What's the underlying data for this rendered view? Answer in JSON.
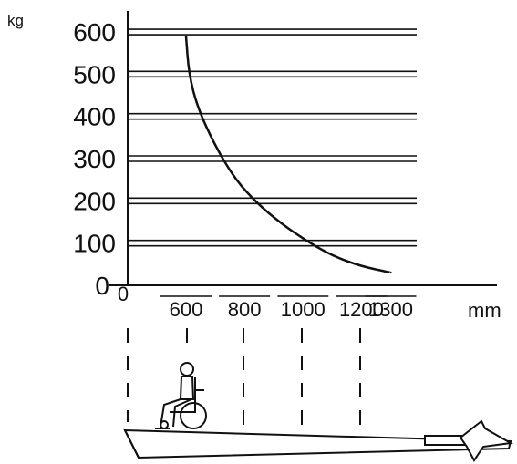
{
  "chart_data": {
    "type": "line",
    "title": "",
    "ylabel": "kg",
    "xlabel": "mm",
    "y_ticks": [
      "0",
      "100",
      "200",
      "300",
      "400",
      "500",
      "600"
    ],
    "x_ticks": [
      "0",
      "600",
      "800",
      "1000",
      "1200",
      "1300"
    ],
    "ylim": [
      0,
      600
    ],
    "grid": "horizontal double lines",
    "series": [
      {
        "points": [
          {
            "x": 600,
            "y": 590
          },
          {
            "x": 610,
            "y": 500
          },
          {
            "x": 640,
            "y": 420
          },
          {
            "x": 700,
            "y": 330
          },
          {
            "x": 760,
            "y": 260
          },
          {
            "x": 820,
            "y": 210
          },
          {
            "x": 900,
            "y": 160
          },
          {
            "x": 1000,
            "y": 110
          },
          {
            "x": 1100,
            "y": 70
          },
          {
            "x": 1200,
            "y": 45
          },
          {
            "x": 1300,
            "y": 30
          }
        ]
      }
    ]
  },
  "illustration": {
    "subject": "wheelchair user on ramp",
    "guide_lines_at": [
      "0",
      "600",
      "800",
      "1000",
      "1200"
    ]
  }
}
